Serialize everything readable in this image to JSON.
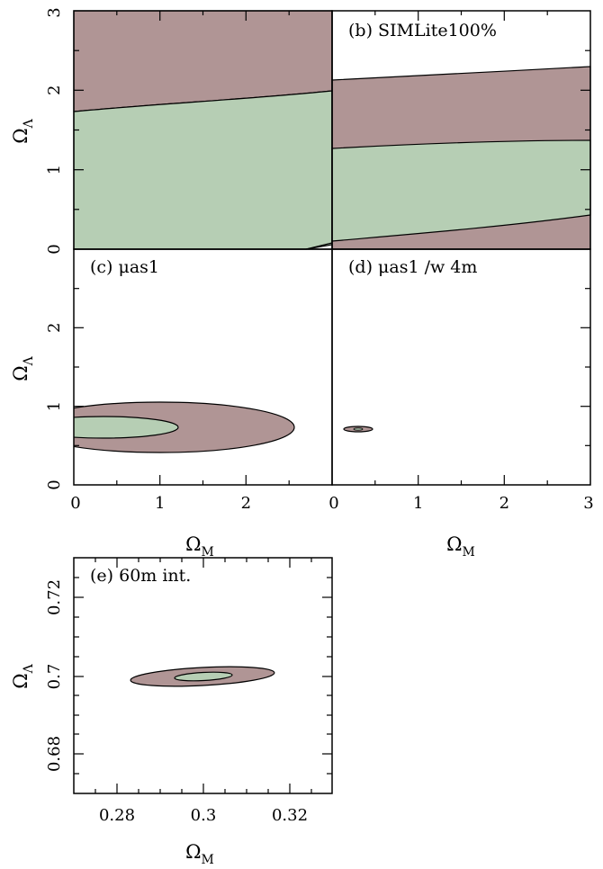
{
  "colors": {
    "outer_region": "#b09595",
    "inner_region": "#b6ceb4",
    "frame": "#000000",
    "background": "#ffffff"
  },
  "chart_data": [
    {
      "type": "contour",
      "panel": "a",
      "label": "",
      "xlim": [
        0,
        3
      ],
      "ylim": [
        0,
        3
      ],
      "xticks": [],
      "yticks": [
        "0",
        "1",
        "2",
        "3"
      ],
      "xlabel": "",
      "ylabel": {
        "main": "Ω",
        "sub": "Λ"
      },
      "regions": [
        {
          "name": "",
          "color": "outer_region",
          "description": "region above inner region up to top of plot",
          "boundary_upper": [
            [
              0,
              3
            ],
            [
              3,
              3
            ]
          ],
          "boundary_lower": [
            [
              0,
              1.72
            ],
            [
              1,
              1.82
            ],
            [
              2,
              1.92
            ],
            [
              3,
              2.0
            ]
          ]
        },
        {
          "name": "",
          "color": "inner_region",
          "boundary_upper": [
            [
              0,
              1.72
            ],
            [
              1,
              1.82
            ],
            [
              2,
              1.92
            ],
            [
              3,
              2.0
            ]
          ],
          "boundary_lower": [
            [
              0,
              0
            ],
            [
              2.8,
              0
            ],
            [
              3,
              0.05
            ]
          ]
        }
      ]
    },
    {
      "type": "contour",
      "panel": "b",
      "label": "(b) SIMLite100%",
      "xlim": [
        0,
        3
      ],
      "ylim": [
        0,
        3
      ],
      "xticks": [],
      "yticks": [],
      "xlabel": "",
      "ylabel": "",
      "regions": [
        {
          "name": "",
          "color": "outer_region",
          "boundary_upper": [
            [
              0,
              2.12
            ],
            [
              1,
              2.18
            ],
            [
              2,
              2.24
            ],
            [
              3,
              2.29
            ]
          ],
          "boundary_lower": [
            [
              0,
              0
            ],
            [
              3,
              0
            ]
          ]
        },
        {
          "name": "",
          "color": "inner_region",
          "boundary_upper": [
            [
              0,
              1.26
            ],
            [
              1,
              1.31
            ],
            [
              2,
              1.34
            ],
            [
              3,
              1.35
            ]
          ],
          "boundary_lower": [
            [
              0,
              0.1
            ],
            [
              1,
              0.15
            ],
            [
              2,
              0.25
            ],
            [
              3,
              0.42
            ]
          ]
        }
      ]
    },
    {
      "type": "contour",
      "panel": "c",
      "label": "(c) μas1",
      "xlim": [
        0,
        3
      ],
      "ylim": [
        0,
        3
      ],
      "xticks": [
        "0",
        "1",
        "2"
      ],
      "yticks": [
        "0",
        "1",
        "2"
      ],
      "xlabel": {
        "main": "Ω",
        "sub": "M"
      },
      "ylabel": {
        "main": "Ω",
        "sub": "Λ"
      },
      "ellipses": [
        {
          "color": "outer_region",
          "cx": 1.0,
          "cy": 0.66,
          "rx": 1.55,
          "ry": 0.25,
          "note": "left edge clipped at x=0"
        },
        {
          "color": "inner_region",
          "cx": 0.35,
          "cy": 0.68,
          "rx": 0.85,
          "ry": 0.11,
          "note": "left edge clipped at x=0"
        }
      ]
    },
    {
      "type": "contour",
      "panel": "d",
      "label": "(d) μas1 /w 4m",
      "xlim": [
        0,
        3
      ],
      "ylim": [
        0,
        3
      ],
      "xticks": [
        "0",
        "1",
        "2",
        "3"
      ],
      "yticks": [],
      "xlabel": {
        "main": "Ω",
        "sub": "M"
      },
      "ylabel": "",
      "ellipses": [
        {
          "color": "outer_region",
          "cx": 0.3,
          "cy": 0.7,
          "rx": 0.17,
          "ry": 0.025
        },
        {
          "color": "inner_region",
          "cx": 0.3,
          "cy": 0.7,
          "rx": 0.05,
          "ry": 0.008
        }
      ]
    },
    {
      "type": "contour",
      "panel": "e",
      "label": "(e) 60m int.",
      "xlim": [
        0.27,
        0.33
      ],
      "ylim": [
        0.675,
        0.73
      ],
      "xticks": [
        "0.28",
        "0.3",
        "0.32"
      ],
      "yticks": [
        "0.68",
        "0.7",
        "0.72"
      ],
      "xlabel": {
        "main": "Ω",
        "sub": "M"
      },
      "ylabel": {
        "main": "Ω",
        "sub": "Λ"
      },
      "ellipses": [
        {
          "color": "outer_region",
          "cx": 0.3,
          "cy": 0.7,
          "rx": 0.0165,
          "ry": 0.0023,
          "angle_deg": 4
        },
        {
          "color": "inner_region",
          "cx": 0.3,
          "cy": 0.7,
          "rx": 0.004,
          "ry": 0.0006,
          "angle_deg": 4
        }
      ]
    }
  ]
}
